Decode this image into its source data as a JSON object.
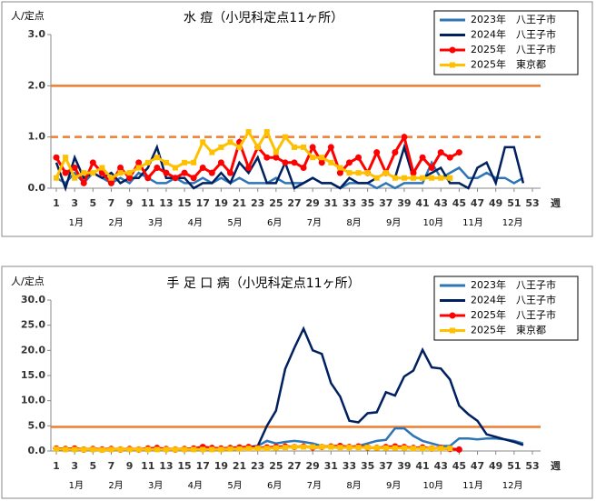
{
  "chart_data": [
    {
      "type": "line",
      "title": "水 痘（小児科定点11ヶ所）",
      "y_label": "人/定点",
      "x_label": "週",
      "x": [
        1,
        2,
        3,
        4,
        5,
        6,
        7,
        8,
        9,
        10,
        11,
        12,
        13,
        14,
        15,
        16,
        17,
        18,
        19,
        20,
        21,
        22,
        23,
        24,
        25,
        26,
        27,
        28,
        29,
        30,
        31,
        32,
        33,
        34,
        35,
        36,
        37,
        38,
        39,
        40,
        41,
        42,
        43,
        44,
        45,
        46,
        47,
        48,
        49,
        50,
        51,
        52,
        53
      ],
      "xlim": [
        1,
        53
      ],
      "xticks": [
        1,
        3,
        5,
        7,
        9,
        11,
        13,
        15,
        17,
        19,
        21,
        23,
        25,
        27,
        29,
        31,
        33,
        35,
        37,
        39,
        41,
        43,
        45,
        47,
        49,
        51,
        53
      ],
      "month_labels": [
        "1月",
        "2月",
        "3月",
        "4月",
        "5月",
        "6月",
        "7月",
        "8月",
        "9月",
        "10月",
        "11月",
        "12月"
      ],
      "ylim": [
        0,
        3
      ],
      "yticks": [
        {
          "value": 0,
          "label": "0.0"
        },
        {
          "value": 1,
          "label": "1.0"
        },
        {
          "value": 2,
          "label": "2.0"
        },
        {
          "value": 3,
          "label": "3.0"
        }
      ],
      "reference_lines": [
        {
          "value": 2,
          "style": "solid",
          "color": "#ed7d31"
        },
        {
          "value": 1,
          "style": "dashed",
          "color": "#ed7d31"
        }
      ],
      "legend": "upper right",
      "series": [
        {
          "name": "2023年　八王子市",
          "color": "#2e75b6",
          "marker": "none",
          "values": [
            0.2,
            0.1,
            0.3,
            0.1,
            0.3,
            0.2,
            0.1,
            0.2,
            0.1,
            0.3,
            0.2,
            0.1,
            0.1,
            0.2,
            0.1,
            0.1,
            0.2,
            0.1,
            0.2,
            0.1,
            0.2,
            0.1,
            0.1,
            0.1,
            0.2,
            0.1,
            0.1,
            0.1,
            0.2,
            0.1,
            0.1,
            0.0,
            0.1,
            0.1,
            0.1,
            0.0,
            0.1,
            0.0,
            0.1,
            0.1,
            0.1,
            0.5,
            0.2,
            0.3,
            0.4,
            0.2,
            0.2,
            0.3,
            0.2,
            0.2,
            0.1,
            0.2,
            null
          ]
        },
        {
          "name": "2024年　八王子市",
          "color": "#002060",
          "marker": "none",
          "values": [
            0.5,
            0.0,
            0.6,
            0.2,
            0.3,
            0.2,
            0.3,
            0.1,
            0.2,
            0.2,
            0.4,
            0.8,
            0.2,
            0.2,
            0.2,
            0.0,
            0.1,
            0.1,
            0.3,
            0.1,
            0.5,
            0.3,
            0.6,
            0.1,
            0.1,
            0.5,
            0.0,
            0.1,
            0.2,
            0.1,
            0.1,
            0.0,
            0.2,
            0.1,
            0.1,
            0.2,
            0.3,
            0.2,
            0.8,
            0.2,
            0.2,
            0.3,
            0.4,
            0.1,
            0.1,
            0.0,
            0.4,
            0.5,
            0.1,
            0.8,
            0.8,
            0.1,
            null
          ]
        },
        {
          "name": "2025年　八王子市",
          "color": "#ff0000",
          "marker": "circle",
          "values": [
            0.6,
            0.3,
            0.4,
            0.1,
            0.5,
            0.3,
            0.1,
            0.4,
            0.2,
            0.5,
            0.2,
            0.4,
            0.3,
            0.2,
            0.3,
            0.2,
            0.4,
            0.3,
            0.5,
            0.3,
            0.9,
            0.4,
            0.8,
            0.6,
            0.6,
            0.5,
            0.5,
            0.4,
            0.8,
            0.5,
            0.8,
            0.3,
            0.5,
            0.6,
            0.3,
            0.7,
            0.3,
            0.7,
            1.0,
            0.3,
            0.6,
            0.4,
            0.7,
            0.6,
            0.7,
            null,
            null,
            null,
            null,
            null,
            null,
            null,
            null
          ]
        },
        {
          "name": "2025年　東京都",
          "color": "#ffc000",
          "marker": "square",
          "values": [
            0.2,
            0.6,
            0.2,
            0.3,
            0.3,
            0.4,
            0.2,
            0.3,
            0.3,
            0.4,
            0.5,
            0.6,
            0.5,
            0.4,
            0.5,
            0.5,
            0.9,
            0.7,
            0.8,
            0.9,
            0.8,
            1.1,
            0.8,
            1.1,
            0.7,
            1.0,
            0.8,
            0.8,
            0.6,
            0.6,
            0.5,
            0.4,
            0.3,
            0.3,
            0.3,
            0.2,
            0.3,
            0.2,
            0.2,
            0.2,
            0.2,
            0.2,
            0.2,
            0.2,
            null,
            null,
            null,
            null,
            null,
            null,
            null,
            null,
            null
          ]
        }
      ]
    },
    {
      "type": "line",
      "title": "手 足 口 病（小児科定点11ヶ所）",
      "y_label": "人/定点",
      "x_label": "週",
      "x": [
        1,
        2,
        3,
        4,
        5,
        6,
        7,
        8,
        9,
        10,
        11,
        12,
        13,
        14,
        15,
        16,
        17,
        18,
        19,
        20,
        21,
        22,
        23,
        24,
        25,
        26,
        27,
        28,
        29,
        30,
        31,
        32,
        33,
        34,
        35,
        36,
        37,
        38,
        39,
        40,
        41,
        42,
        43,
        44,
        45,
        46,
        47,
        48,
        49,
        50,
        51,
        52,
        53
      ],
      "xlim": [
        1,
        53
      ],
      "xticks": [
        1,
        3,
        5,
        7,
        9,
        11,
        13,
        15,
        17,
        19,
        21,
        23,
        25,
        27,
        29,
        31,
        33,
        35,
        37,
        39,
        41,
        43,
        45,
        47,
        49,
        51,
        53
      ],
      "month_labels": [
        "1月",
        "2月",
        "3月",
        "4月",
        "5月",
        "6月",
        "7月",
        "8月",
        "9月",
        "10月",
        "11月",
        "12月"
      ],
      "ylim": [
        0,
        30
      ],
      "yticks": [
        {
          "value": 0,
          "label": "0.0"
        },
        {
          "value": 5,
          "label": "5.0"
        },
        {
          "value": 10,
          "label": "10.0"
        },
        {
          "value": 15,
          "label": "15.0"
        },
        {
          "value": 20,
          "label": "20.0"
        },
        {
          "value": 25,
          "label": "25.0"
        },
        {
          "value": 30,
          "label": "30.0"
        }
      ],
      "reference_lines": [
        {
          "value": 4.8,
          "style": "solid",
          "color": "#ed7d31"
        }
      ],
      "legend": "upper right",
      "series": [
        {
          "name": "2023年　八王子市",
          "color": "#2e75b6",
          "marker": "none",
          "values": [
            0.2,
            0.2,
            0.2,
            0.2,
            0.2,
            0.2,
            0.2,
            0.2,
            0.2,
            0.2,
            0.2,
            0.2,
            0.2,
            0.2,
            0.2,
            0.2,
            0.2,
            0.2,
            0.3,
            0.3,
            0.4,
            0.6,
            1.0,
            2.0,
            1.5,
            1.8,
            2.0,
            1.8,
            1.5,
            1.0,
            0.8,
            0.6,
            0.8,
            1.0,
            1.5,
            2.0,
            2.2,
            4.5,
            4.5,
            3.0,
            2.0,
            1.5,
            1.0,
            1.0,
            2.5,
            2.5,
            2.3,
            2.5,
            2.5,
            2.3,
            2.0,
            1.5,
            null
          ]
        },
        {
          "name": "2024年　八王子市",
          "color": "#002060",
          "marker": "none",
          "values": [
            0.4,
            0.3,
            0.4,
            0.3,
            0.4,
            0.3,
            0.3,
            0.4,
            0.3,
            0.4,
            0.3,
            0.4,
            0.3,
            0.4,
            0.4,
            0.5,
            0.4,
            0.5,
            0.4,
            0.5,
            0.5,
            0.8,
            1.0,
            5.0,
            8.0,
            16.3,
            20.5,
            24.3,
            20.0,
            19.3,
            13.5,
            10.8,
            6.0,
            5.7,
            7.5,
            7.7,
            11.7,
            11.0,
            14.8,
            16.0,
            20.1,
            16.6,
            16.4,
            14.2,
            9.0,
            7.3,
            6.0,
            3.3,
            2.8,
            2.3,
            1.8,
            1.2,
            null
          ]
        },
        {
          "name": "2025年　八王子市",
          "color": "#ff0000",
          "marker": "circle",
          "values": [
            0.5,
            0.4,
            0.5,
            0.3,
            0.4,
            0.3,
            0.4,
            0.3,
            0.4,
            0.3,
            0.5,
            0.6,
            0.4,
            0.3,
            0.4,
            0.5,
            0.8,
            0.6,
            0.5,
            0.6,
            0.7,
            0.8,
            0.6,
            0.7,
            0.8,
            0.9,
            0.8,
            0.9,
            0.7,
            0.8,
            0.9,
            1.0,
            0.8,
            0.9,
            0.7,
            0.6,
            0.8,
            0.9,
            0.8,
            0.6,
            0.7,
            0.5,
            0.6,
            0.4,
            0.3,
            null,
            null,
            null,
            null,
            null,
            null,
            null,
            null
          ]
        },
        {
          "name": "2025年　東京都",
          "color": "#ffc000",
          "marker": "square",
          "values": [
            0.4,
            0.3,
            0.3,
            0.3,
            0.3,
            0.2,
            0.3,
            0.3,
            0.3,
            0.3,
            0.3,
            0.3,
            0.3,
            0.3,
            0.3,
            0.3,
            0.3,
            0.3,
            0.3,
            0.4,
            0.4,
            0.5,
            0.5,
            0.5,
            0.6,
            0.7,
            0.8,
            0.8,
            0.8,
            0.8,
            0.8,
            0.7,
            0.7,
            0.7,
            0.7,
            0.6,
            0.6,
            0.6,
            0.6,
            0.5,
            0.5,
            0.5,
            0.5,
            0.5,
            null,
            null,
            null,
            null,
            null,
            null,
            null,
            null,
            null
          ]
        }
      ]
    }
  ]
}
